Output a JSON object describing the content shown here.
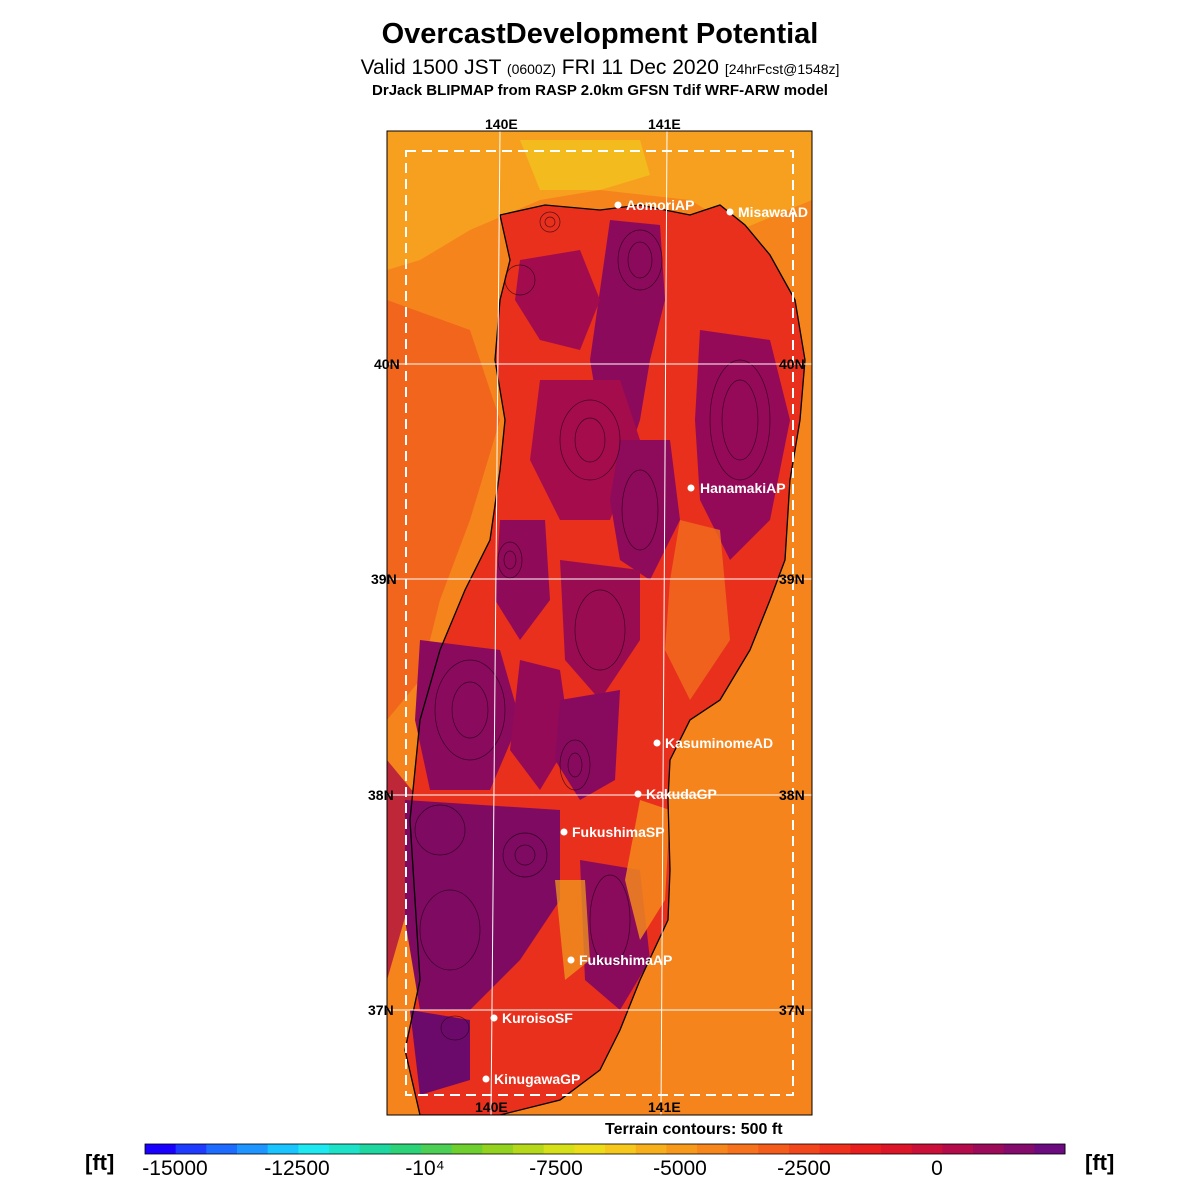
{
  "header": {
    "title": "OvercastDevelopment Potential",
    "valid_main": "Valid 1500 JST ",
    "valid_utc": "(0600Z)",
    "valid_date": " FRI 11 Dec 2020 ",
    "forecast": "[24hrFcst@1548z]",
    "model": "DrJack BLIPMAP from RASP 2.0km GFSN Tdif WRF-ARW model"
  },
  "map": {
    "lon_labels": [
      "140E",
      "141E"
    ],
    "lat_labels": [
      "40N",
      "39N",
      "38N",
      "37N"
    ],
    "stations": [
      {
        "name": "AomoriAP"
      },
      {
        "name": "MisawaAD"
      },
      {
        "name": "HanamakiAP"
      },
      {
        "name": "KasuminomeAD"
      },
      {
        "name": "KakudaGP"
      },
      {
        "name": "FukushimaSP"
      },
      {
        "name": "FukushimaAP"
      },
      {
        "name": "KuroisoSF"
      },
      {
        "name": "KinugawaGP"
      }
    ],
    "terrain_note": "Terrain contours: 500 ft"
  },
  "colorbar": {
    "unit": "[ft]",
    "ticks": [
      "-15000",
      "-12500",
      "-10⁴",
      "-7500",
      "-5000",
      "-2500",
      "0"
    ],
    "colors": [
      "#1a00ff",
      "#1f3bff",
      "#1e6cff",
      "#1f96ff",
      "#1ac4ff",
      "#1ee8f0",
      "#1ee2c8",
      "#1ed6a0",
      "#2cd278",
      "#4ccf55",
      "#6fcf2e",
      "#93d21e",
      "#b5d81a",
      "#d6e01a",
      "#ecdc1a",
      "#f6c81e",
      "#f7b01c",
      "#f79a1c",
      "#f7861c",
      "#f6721c",
      "#f45c1c",
      "#f2461c",
      "#ee301c",
      "#e81e1e",
      "#dc1628",
      "#ca1038",
      "#b40c4a",
      "#9c0a5a",
      "#840a6c",
      "#6c0a80"
    ]
  }
}
